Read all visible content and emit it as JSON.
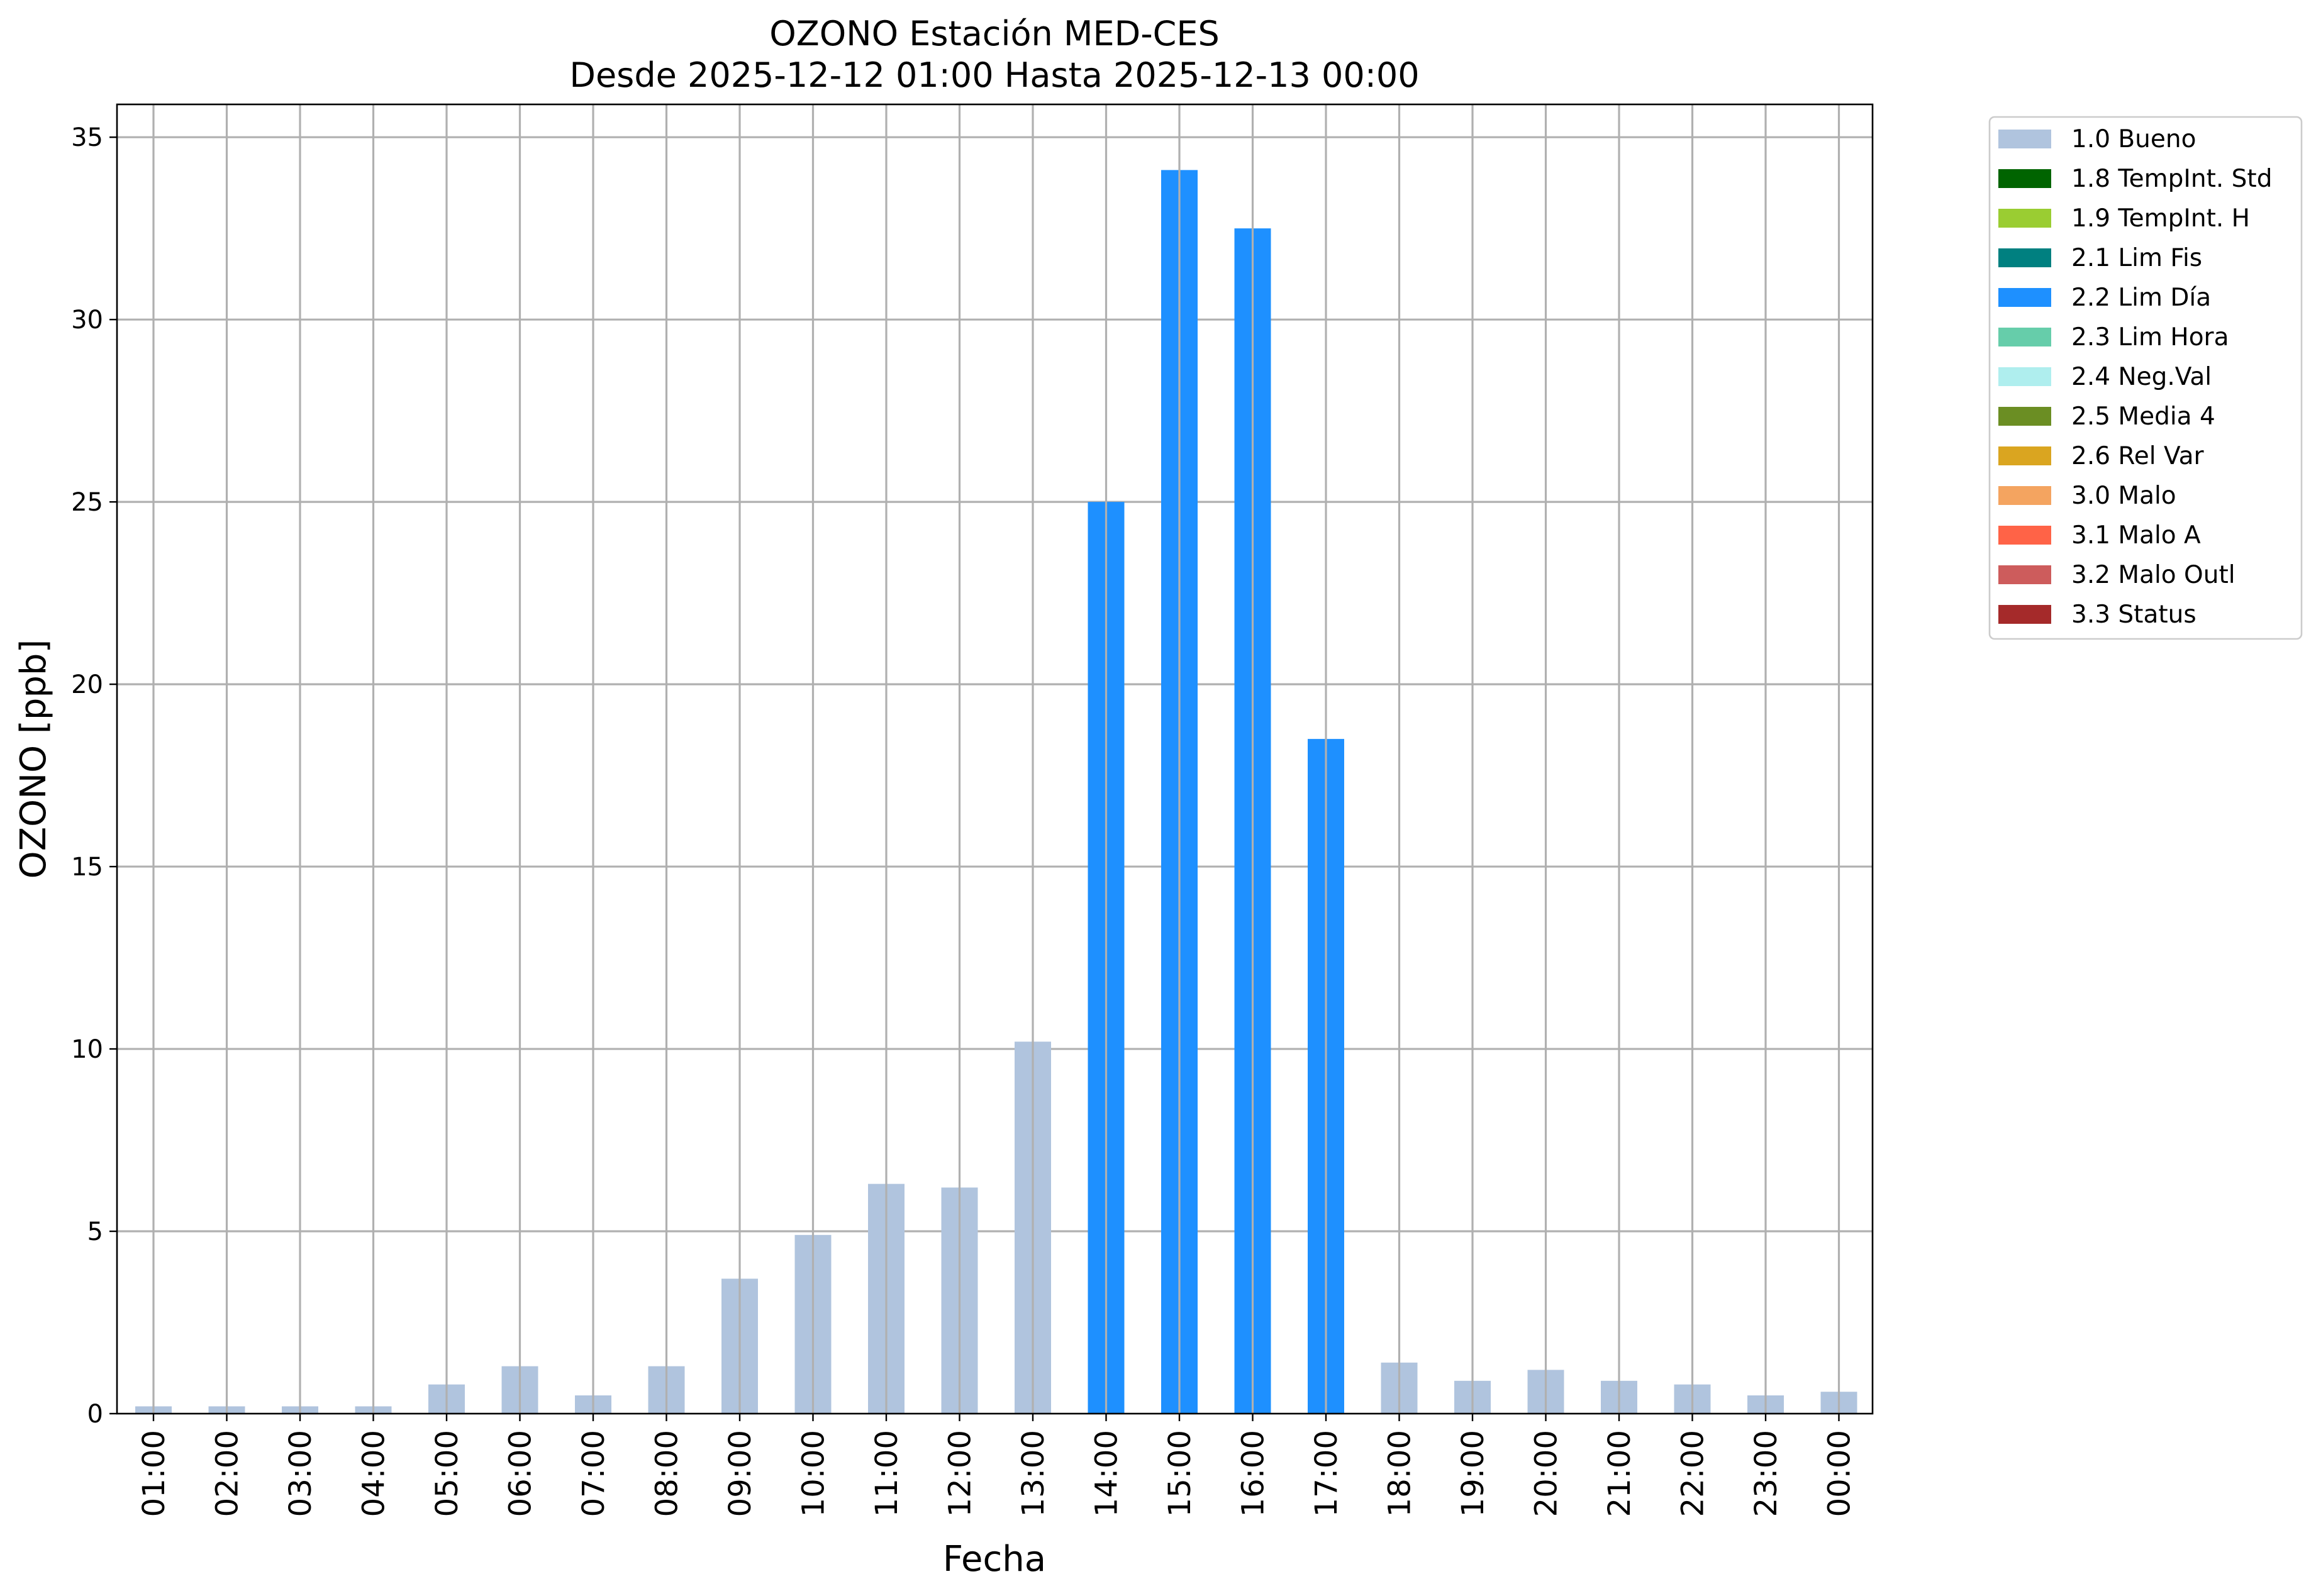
{
  "chart_data": {
    "type": "bar",
    "title": "OZONO Estación MED-CES",
    "subtitle": "Desde 2025-12-12 01:00 Hasta 2025-12-13 00:00",
    "xlabel": "Fecha",
    "ylabel": "OZONO [ppb]",
    "ylim": [
      0,
      35.9
    ],
    "yticks": [
      0,
      5,
      10,
      15,
      20,
      25,
      30,
      35
    ],
    "grid": true,
    "legend_placement": "outside-top-right",
    "categories": [
      "01:00",
      "02:00",
      "03:00",
      "04:00",
      "05:00",
      "06:00",
      "07:00",
      "08:00",
      "09:00",
      "10:00",
      "11:00",
      "12:00",
      "13:00",
      "14:00",
      "15:00",
      "16:00",
      "17:00",
      "18:00",
      "19:00",
      "20:00",
      "21:00",
      "22:00",
      "23:00",
      "00:00"
    ],
    "values": [
      0.2,
      0.2,
      0.2,
      0.2,
      0.8,
      1.3,
      0.5,
      1.3,
      3.7,
      4.9,
      6.3,
      6.2,
      10.2,
      25.0,
      34.1,
      32.5,
      18.5,
      1.4,
      0.9,
      1.2,
      0.9,
      0.8,
      0.5,
      0.6
    ],
    "flags": [
      "1.0 Bueno",
      "1.0 Bueno",
      "1.0 Bueno",
      "1.0 Bueno",
      "1.0 Bueno",
      "1.0 Bueno",
      "1.0 Bueno",
      "1.0 Bueno",
      "1.0 Bueno",
      "1.0 Bueno",
      "1.0 Bueno",
      "1.0 Bueno",
      "1.0 Bueno",
      "2.2 Lim Día",
      "2.2 Lim Día",
      "2.2 Lim Día",
      "2.2 Lim Día",
      "1.0 Bueno",
      "1.0 Bueno",
      "1.0 Bueno",
      "1.0 Bueno",
      "1.0 Bueno",
      "1.0 Bueno",
      "1.0 Bueno"
    ],
    "legend": [
      {
        "label": "1.0 Bueno",
        "color": "#b0c4de"
      },
      {
        "label": "1.8 TempInt. Std",
        "color": "#006400"
      },
      {
        "label": "1.9 TempInt. H",
        "color": "#9acd32"
      },
      {
        "label": "2.1 Lim Fis",
        "color": "#008080"
      },
      {
        "label": "2.2 Lim Día",
        "color": "#1e90ff"
      },
      {
        "label": "2.3 Lim Hora",
        "color": "#66cdaa"
      },
      {
        "label": "2.4 Neg.Val",
        "color": "#afeeee"
      },
      {
        "label": "2.5 Media 4",
        "color": "#6b8e23"
      },
      {
        "label": "2.6 Rel Var",
        "color": "#daa520"
      },
      {
        "label": "3.0 Malo",
        "color": "#f4a460"
      },
      {
        "label": "3.1 Malo A",
        "color": "#ff6347"
      },
      {
        "label": "3.2 Malo Outl",
        "color": "#cd5c5c"
      },
      {
        "label": "3.3 Status",
        "color": "#a52a2a"
      }
    ]
  }
}
